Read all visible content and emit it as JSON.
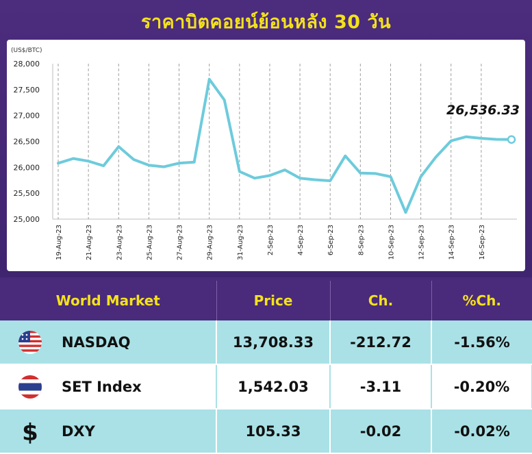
{
  "title": "ราคาบิตคอยน์ย้อนหลัง 30 วัน",
  "chart_data": {
    "type": "line",
    "ylabel": "(US$/BTC)",
    "ylim": [
      25000,
      28000
    ],
    "yticks": [
      "25,000",
      "25,500",
      "26,000",
      "26,500",
      "27,000",
      "27,500",
      "28,000"
    ],
    "ytick_values": [
      25000,
      25500,
      26000,
      26500,
      27000,
      27500,
      28000
    ],
    "xticks": [
      "19-Aug-23",
      "21-Aug-23",
      "23-Aug-23",
      "25-Aug-23",
      "27-Aug-23",
      "29-Aug-23",
      "31-Aug-23",
      "2-Sep-23",
      "4-Sep-23",
      "6-Sep-23",
      "8-Sep-23",
      "10-Sep-23",
      "12-Sep-23",
      "14-Sep-23",
      "16-Sep-23"
    ],
    "x": [
      "19-Aug-23",
      "20-Aug-23",
      "21-Aug-23",
      "22-Aug-23",
      "23-Aug-23",
      "24-Aug-23",
      "25-Aug-23",
      "26-Aug-23",
      "27-Aug-23",
      "28-Aug-23",
      "29-Aug-23",
      "30-Aug-23",
      "31-Aug-23",
      "1-Sep-23",
      "2-Sep-23",
      "3-Sep-23",
      "4-Sep-23",
      "5-Sep-23",
      "6-Sep-23",
      "7-Sep-23",
      "8-Sep-23",
      "9-Sep-23",
      "10-Sep-23",
      "11-Sep-23",
      "12-Sep-23",
      "13-Sep-23",
      "14-Sep-23",
      "15-Sep-23",
      "16-Sep-23",
      "17-Sep-23",
      "18-Sep-23"
    ],
    "values": [
      26080,
      26170,
      26120,
      26030,
      26400,
      26150,
      26040,
      26010,
      26080,
      26100,
      27700,
      27300,
      25920,
      25790,
      25840,
      25950,
      25790,
      25760,
      25740,
      26220,
      25890,
      25880,
      25820,
      25130,
      25820,
      26200,
      26510,
      26590,
      26560,
      26540,
      26536.33
    ],
    "last_label": "26,536.33",
    "grid": "vertical-dashed",
    "line_color": "#6dcbdc"
  },
  "table": {
    "headers": [
      "World Market",
      "Price",
      "Ch.",
      "%Ch."
    ],
    "rows": [
      {
        "icon": "us-flag-icon",
        "name": "NASDAQ",
        "price": "13,708.33",
        "ch": "-212.72",
        "pch": "-1.56%"
      },
      {
        "icon": "thai-flag-icon",
        "name": "SET Index",
        "price": "1,542.03",
        "ch": "-3.11",
        "pch": "-0.20%"
      },
      {
        "icon": "dollar-icon",
        "name": "DXY",
        "price": "105.33",
        "ch": "-0.02",
        "pch": "-0.02%"
      }
    ]
  },
  "colors": {
    "header_bg": "#4a2a7a",
    "title": "#f3e21c",
    "row_alt": "#a9e1e6"
  }
}
